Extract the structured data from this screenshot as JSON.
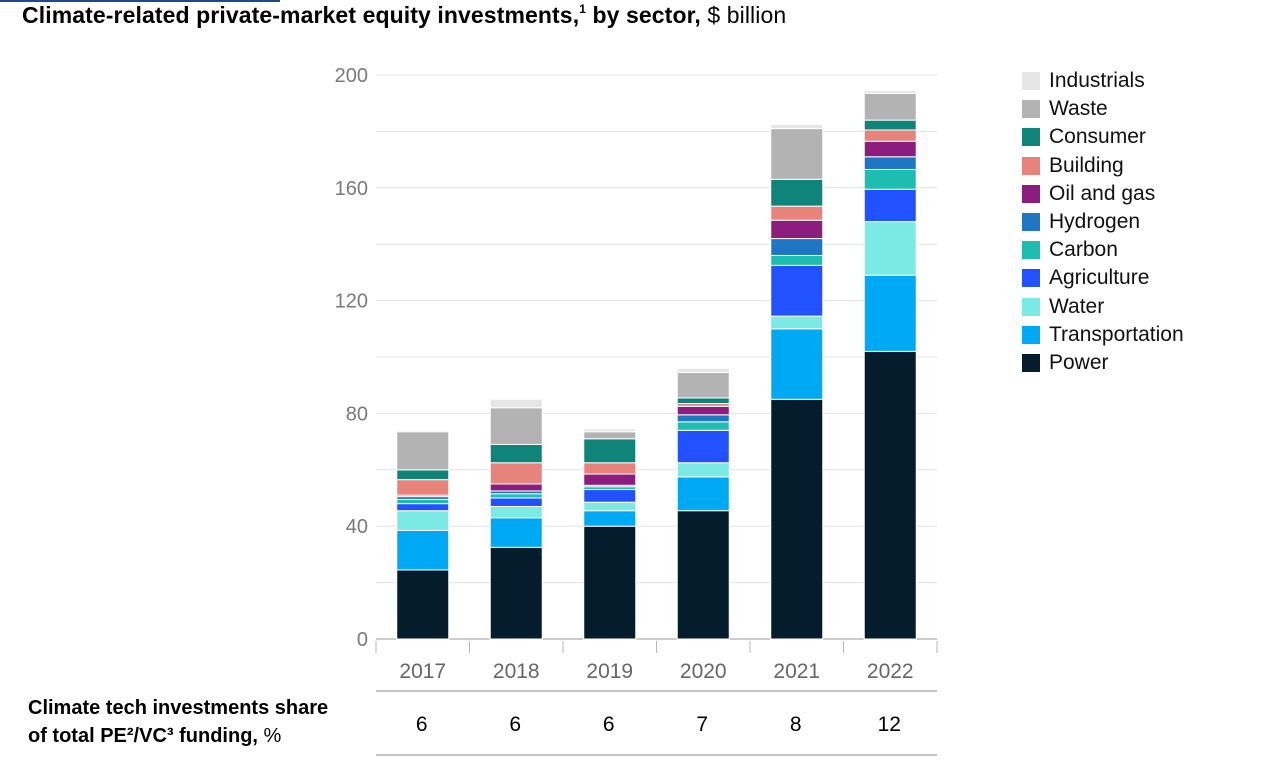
{
  "title": {
    "main": "Climate-related private-market equity investments,",
    "footnote": "1",
    "main2": " by sector,",
    "unit": " $ billion"
  },
  "share_row": {
    "label_line1": "Climate tech investments share",
    "label_line2": "of total PE²/VC³ funding,",
    "label_unit": " %",
    "values": [
      "6",
      "6",
      "6",
      "7",
      "8",
      "12"
    ]
  },
  "chart_data": {
    "type": "bar",
    "stacked": true,
    "title": "Climate-related private-market equity investments, by sector, $ billion",
    "xlabel": "",
    "ylabel": "$ billion",
    "ylim": [
      0,
      200
    ],
    "yticks": [
      0,
      40,
      80,
      120,
      160,
      200
    ],
    "grid": true,
    "legend_position": "right",
    "categories": [
      "2017",
      "2018",
      "2019",
      "2020",
      "2021",
      "2022"
    ],
    "series": [
      {
        "name": "Power",
        "color": "#051c2c",
        "values": [
          24.5,
          32.5,
          40.0,
          45.5,
          85.0,
          102.0
        ]
      },
      {
        "name": "Transportation",
        "color": "#00a9f4",
        "values": [
          14.0,
          10.5,
          5.5,
          12.0,
          25.0,
          27.0
        ]
      },
      {
        "name": "Water",
        "color": "#7beae4",
        "values": [
          7.0,
          4.0,
          3.0,
          5.0,
          4.5,
          19.0
        ]
      },
      {
        "name": "Agriculture",
        "color": "#2251ff",
        "values": [
          2.5,
          3.0,
          4.5,
          11.5,
          18.0,
          11.5
        ]
      },
      {
        "name": "Carbon",
        "color": "#1dbdaf",
        "values": [
          1.5,
          1.5,
          1.0,
          3.0,
          3.5,
          7.0
        ]
      },
      {
        "name": "Hydrogen",
        "color": "#1f77c4",
        "values": [
          1.0,
          1.0,
          0.5,
          2.5,
          6.0,
          4.5
        ]
      },
      {
        "name": "Oil and gas",
        "color": "#8c1d7f",
        "values": [
          0.5,
          2.5,
          4.0,
          3.0,
          6.5,
          5.5
        ]
      },
      {
        "name": "Building",
        "color": "#e8837c",
        "values": [
          5.5,
          7.5,
          4.0,
          1.0,
          5.0,
          4.0
        ]
      },
      {
        "name": "Consumer",
        "color": "#0f857a",
        "values": [
          3.5,
          6.5,
          8.5,
          2.0,
          9.5,
          3.5
        ]
      },
      {
        "name": "Waste",
        "color": "#b3b3b3",
        "values": [
          13.5,
          13.0,
          2.5,
          9.0,
          18.0,
          9.5
        ]
      },
      {
        "name": "Industrials",
        "color": "#e6e6e6",
        "values": [
          0.5,
          3.0,
          1.0,
          1.5,
          1.5,
          1.0
        ]
      }
    ],
    "legend_order": [
      "Industrials",
      "Waste",
      "Consumer",
      "Building",
      "Oil and gas",
      "Hydrogen",
      "Carbon",
      "Agriculture",
      "Water",
      "Transportation",
      "Power"
    ]
  }
}
